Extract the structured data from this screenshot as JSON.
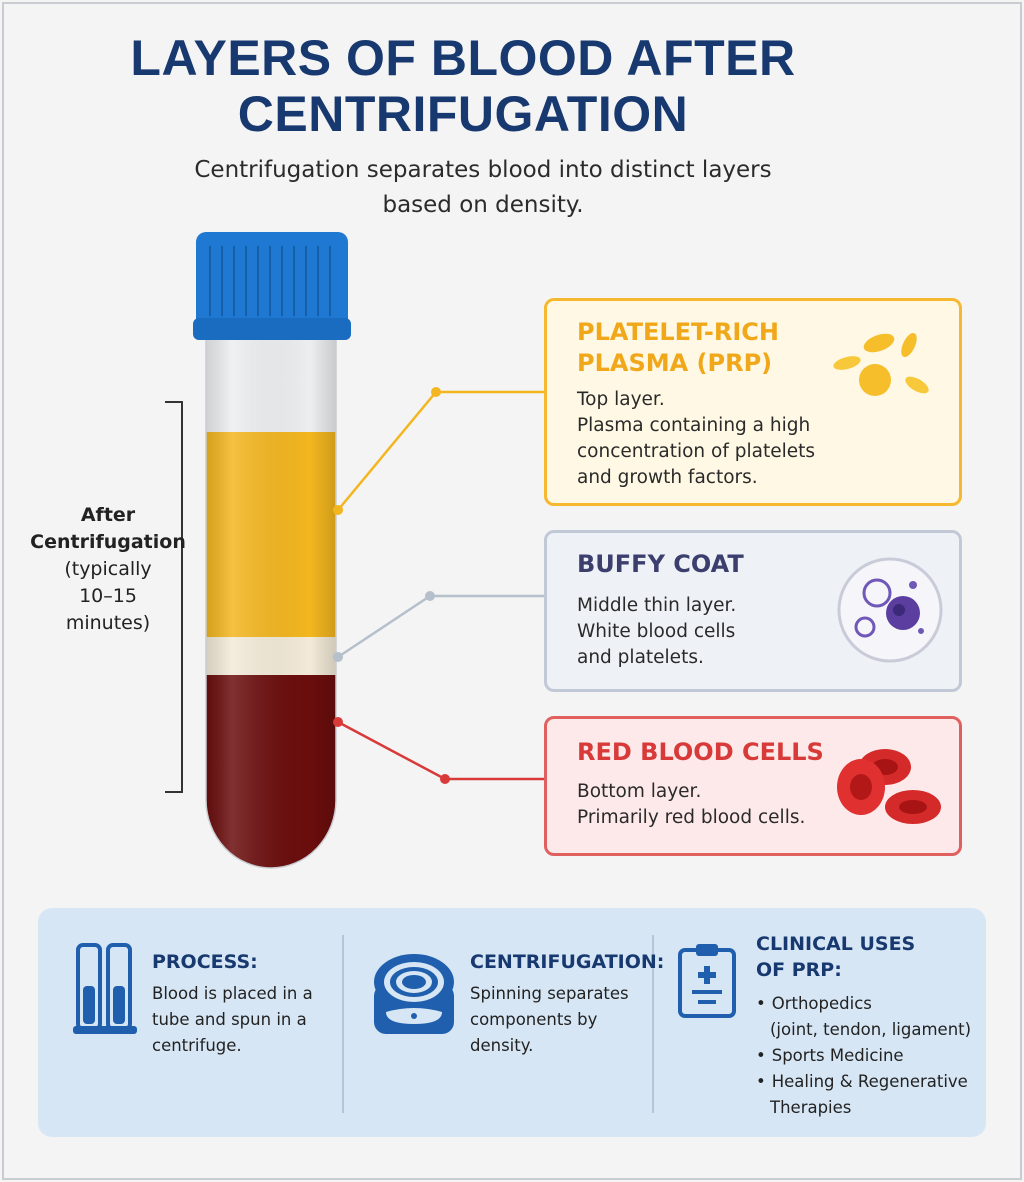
{
  "title_lines": [
    "LAYERS OF BLOOD AFTER",
    "CENTRIFUGATION"
  ],
  "subtitle_lines": [
    "Centrifugation separates blood into distinct layers",
    "based on density."
  ],
  "side_label": {
    "bold": [
      "After",
      "Centrifugation"
    ],
    "note": [
      "(typically",
      "10–15",
      "minutes)"
    ]
  },
  "layers": [
    {
      "title_lines": [
        "PLATELET-RICH",
        "PLASMA (PRP)"
      ],
      "desc_lines": [
        "Top layer.",
        "Plasma containing a high",
        "concentration of platelets",
        "and growth factors."
      ],
      "color": "#f5b82e",
      "title_color": "#f0a81a",
      "icon": "platelets-icon"
    },
    {
      "title_lines": [
        "BUFFY COAT"
      ],
      "desc_lines": [
        "Middle thin layer.",
        "White blood cells",
        "and platelets."
      ],
      "color": "#c2c9d6",
      "title_color": "#3c3f6e",
      "icon": "white-blood-cells-icon"
    },
    {
      "title_lines": [
        "RED BLOOD CELLS"
      ],
      "desc_lines": [
        "Bottom layer.",
        "Primarily red blood cells."
      ],
      "color": "#e06060",
      "title_color": "#d83a3a",
      "icon": "red-blood-cells-icon"
    }
  ],
  "bottom": {
    "process": {
      "title": "PROCESS:",
      "text_lines": [
        "Blood is placed in a",
        "tube and spun in a",
        "centrifuge."
      ],
      "icon": "test-tubes-icon"
    },
    "centrifugation": {
      "title": "CENTRIFUGATION:",
      "text_lines": [
        "Spinning separates",
        "components by",
        "density."
      ],
      "icon": "centrifuge-icon"
    },
    "clinical": {
      "title_lines": [
        "CLINICAL USES",
        "OF PRP:"
      ],
      "items": [
        [
          "Orthopedics",
          "(joint, tendon, ligament)"
        ],
        [
          "Sports Medicine"
        ],
        [
          "Healing & Regenerative",
          "Therapies"
        ]
      ],
      "icon": "clipboard-icon"
    }
  },
  "colors": {
    "title": "#17396f",
    "accent_blue": "#1f5fae",
    "cap": "#1f78d1",
    "plasma": "#f3b61f",
    "buffy": "#f3ead8",
    "rbc": "#6b0d0d"
  }
}
